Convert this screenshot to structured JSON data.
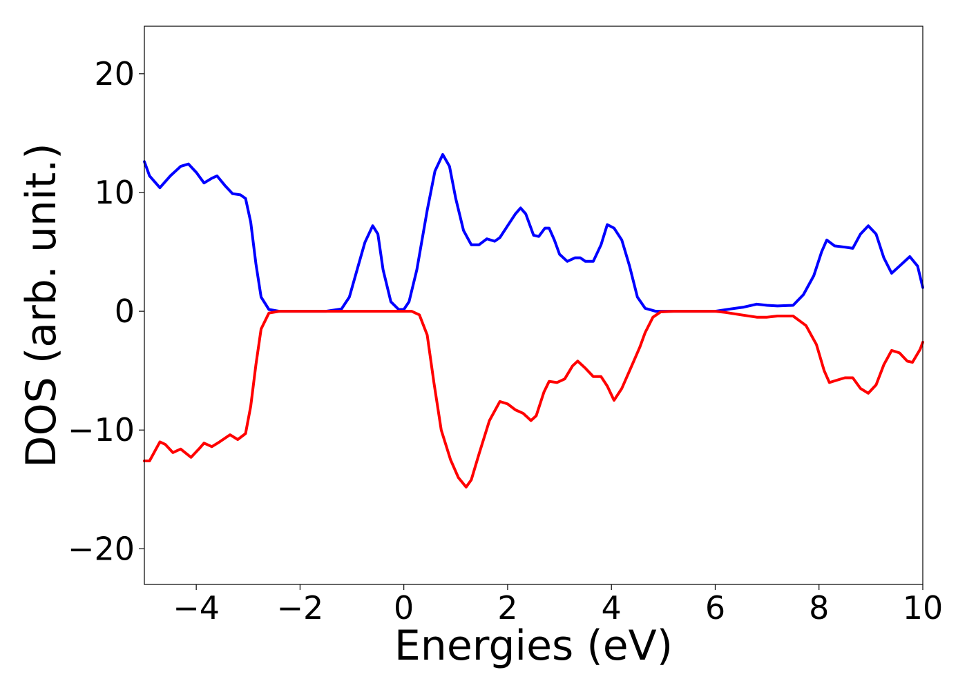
{
  "chart_data": {
    "type": "line",
    "title": "",
    "xlabel": "Energies (eV)",
    "ylabel": "DOS (arb. unit.)",
    "xlim": [
      -5,
      10
    ],
    "ylim": [
      -23,
      24
    ],
    "xticks": [
      -4,
      -2,
      0,
      2,
      4,
      6,
      8,
      10
    ],
    "yticks": [
      -20,
      -10,
      0,
      10,
      20
    ],
    "xtick_labels": [
      "−4",
      "−2",
      "0",
      "2",
      "4",
      "6",
      "8",
      "10"
    ],
    "ytick_labels": [
      "−20",
      "−10",
      "0",
      "10",
      "20"
    ],
    "grid": false,
    "legend": false,
    "series": [
      {
        "color": "#0000ff",
        "points": [
          [
            -5.0,
            12.6
          ],
          [
            -4.9,
            11.4
          ],
          [
            -4.7,
            10.4
          ],
          [
            -4.5,
            11.4
          ],
          [
            -4.3,
            12.2
          ],
          [
            -4.15,
            12.4
          ],
          [
            -4.0,
            11.7
          ],
          [
            -3.85,
            10.8
          ],
          [
            -3.7,
            11.2
          ],
          [
            -3.6,
            11.4
          ],
          [
            -3.45,
            10.6
          ],
          [
            -3.3,
            9.9
          ],
          [
            -3.15,
            9.8
          ],
          [
            -3.05,
            9.5
          ],
          [
            -2.95,
            7.5
          ],
          [
            -2.85,
            4.0
          ],
          [
            -2.75,
            1.2
          ],
          [
            -2.6,
            0.15
          ],
          [
            -2.4,
            0.0
          ],
          [
            -2.0,
            0.0
          ],
          [
            -1.5,
            0.0
          ],
          [
            -1.2,
            0.2
          ],
          [
            -1.05,
            1.2
          ],
          [
            -0.9,
            3.5
          ],
          [
            -0.75,
            5.8
          ],
          [
            -0.6,
            7.2
          ],
          [
            -0.5,
            6.5
          ],
          [
            -0.4,
            3.5
          ],
          [
            -0.25,
            0.8
          ],
          [
            -0.1,
            0.15
          ],
          [
            0.0,
            0.15
          ],
          [
            0.1,
            0.8
          ],
          [
            0.25,
            3.5
          ],
          [
            0.45,
            8.5
          ],
          [
            0.6,
            11.8
          ],
          [
            0.75,
            13.2
          ],
          [
            0.88,
            12.2
          ],
          [
            1.0,
            9.5
          ],
          [
            1.15,
            6.8
          ],
          [
            1.3,
            5.6
          ],
          [
            1.45,
            5.6
          ],
          [
            1.6,
            6.1
          ],
          [
            1.75,
            5.9
          ],
          [
            1.85,
            6.2
          ],
          [
            2.0,
            7.2
          ],
          [
            2.15,
            8.2
          ],
          [
            2.25,
            8.7
          ],
          [
            2.35,
            8.2
          ],
          [
            2.5,
            6.4
          ],
          [
            2.6,
            6.3
          ],
          [
            2.72,
            7.0
          ],
          [
            2.8,
            7.0
          ],
          [
            2.9,
            6.0
          ],
          [
            3.0,
            4.8
          ],
          [
            3.15,
            4.2
          ],
          [
            3.3,
            4.5
          ],
          [
            3.4,
            4.5
          ],
          [
            3.5,
            4.2
          ],
          [
            3.65,
            4.2
          ],
          [
            3.8,
            5.6
          ],
          [
            3.92,
            7.3
          ],
          [
            4.05,
            7.0
          ],
          [
            4.2,
            6.0
          ],
          [
            4.35,
            3.8
          ],
          [
            4.5,
            1.2
          ],
          [
            4.65,
            0.25
          ],
          [
            4.85,
            0.0
          ],
          [
            5.5,
            0.0
          ],
          [
            6.0,
            0.0
          ],
          [
            6.3,
            0.2
          ],
          [
            6.55,
            0.35
          ],
          [
            6.8,
            0.6
          ],
          [
            7.0,
            0.5
          ],
          [
            7.2,
            0.45
          ],
          [
            7.5,
            0.5
          ],
          [
            7.7,
            1.4
          ],
          [
            7.9,
            3.0
          ],
          [
            8.05,
            5.0
          ],
          [
            8.15,
            6.0
          ],
          [
            8.3,
            5.5
          ],
          [
            8.5,
            5.4
          ],
          [
            8.65,
            5.3
          ],
          [
            8.8,
            6.5
          ],
          [
            8.95,
            7.2
          ],
          [
            9.1,
            6.5
          ],
          [
            9.25,
            4.5
          ],
          [
            9.4,
            3.2
          ],
          [
            9.55,
            3.8
          ],
          [
            9.75,
            4.6
          ],
          [
            9.9,
            3.8
          ],
          [
            10.0,
            2.0
          ]
        ]
      },
      {
        "color": "#ff0000",
        "points": [
          [
            -5.0,
            -12.6
          ],
          [
            -4.9,
            -12.6
          ],
          [
            -4.7,
            -11.0
          ],
          [
            -4.6,
            -11.2
          ],
          [
            -4.45,
            -11.9
          ],
          [
            -4.3,
            -11.6
          ],
          [
            -4.1,
            -12.3
          ],
          [
            -3.95,
            -11.6
          ],
          [
            -3.85,
            -11.1
          ],
          [
            -3.7,
            -11.4
          ],
          [
            -3.55,
            -11.0
          ],
          [
            -3.35,
            -10.4
          ],
          [
            -3.2,
            -10.8
          ],
          [
            -3.05,
            -10.3
          ],
          [
            -2.95,
            -8.0
          ],
          [
            -2.85,
            -4.5
          ],
          [
            -2.75,
            -1.5
          ],
          [
            -2.6,
            -0.15
          ],
          [
            -2.4,
            0.0
          ],
          [
            -2.0,
            0.0
          ],
          [
            -1.0,
            0.0
          ],
          [
            0.0,
            0.0
          ],
          [
            0.15,
            0.0
          ],
          [
            0.3,
            -0.3
          ],
          [
            0.45,
            -2.0
          ],
          [
            0.58,
            -6.0
          ],
          [
            0.72,
            -10.0
          ],
          [
            0.9,
            -12.5
          ],
          [
            1.05,
            -14.0
          ],
          [
            1.2,
            -14.8
          ],
          [
            1.3,
            -14.2
          ],
          [
            1.45,
            -12.0
          ],
          [
            1.65,
            -9.2
          ],
          [
            1.85,
            -7.6
          ],
          [
            2.0,
            -7.8
          ],
          [
            2.15,
            -8.3
          ],
          [
            2.3,
            -8.6
          ],
          [
            2.45,
            -9.2
          ],
          [
            2.55,
            -8.8
          ],
          [
            2.7,
            -6.8
          ],
          [
            2.8,
            -5.9
          ],
          [
            2.95,
            -6.0
          ],
          [
            3.1,
            -5.7
          ],
          [
            3.25,
            -4.6
          ],
          [
            3.35,
            -4.2
          ],
          [
            3.5,
            -4.8
          ],
          [
            3.65,
            -5.5
          ],
          [
            3.8,
            -5.5
          ],
          [
            3.92,
            -6.3
          ],
          [
            4.05,
            -7.5
          ],
          [
            4.2,
            -6.5
          ],
          [
            4.4,
            -4.5
          ],
          [
            4.55,
            -3.0
          ],
          [
            4.65,
            -1.8
          ],
          [
            4.8,
            -0.5
          ],
          [
            4.95,
            -0.05
          ],
          [
            5.2,
            0.0
          ],
          [
            6.0,
            0.0
          ],
          [
            6.2,
            -0.1
          ],
          [
            6.5,
            -0.3
          ],
          [
            6.8,
            -0.5
          ],
          [
            7.0,
            -0.5
          ],
          [
            7.2,
            -0.4
          ],
          [
            7.5,
            -0.4
          ],
          [
            7.75,
            -1.2
          ],
          [
            7.95,
            -2.8
          ],
          [
            8.1,
            -5.0
          ],
          [
            8.2,
            -6.0
          ],
          [
            8.35,
            -5.8
          ],
          [
            8.5,
            -5.6
          ],
          [
            8.65,
            -5.6
          ],
          [
            8.8,
            -6.5
          ],
          [
            8.95,
            -6.9
          ],
          [
            9.1,
            -6.2
          ],
          [
            9.25,
            -4.5
          ],
          [
            9.4,
            -3.3
          ],
          [
            9.55,
            -3.5
          ],
          [
            9.7,
            -4.2
          ],
          [
            9.8,
            -4.3
          ],
          [
            9.95,
            -3.2
          ],
          [
            10.0,
            -2.6
          ]
        ]
      }
    ]
  }
}
